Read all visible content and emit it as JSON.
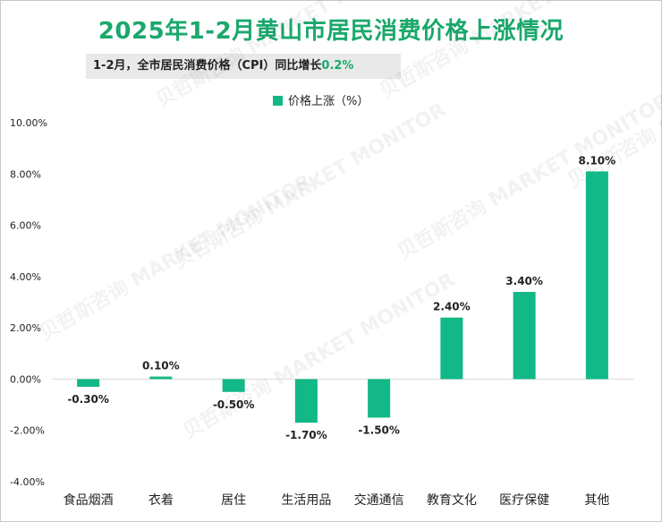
{
  "title": "2025年1-2月黄山市居民消费价格上涨情况",
  "subtitle_text": "1-2月，全市居民消费价格（CPI）同比增长",
  "subtitle_value": "0.2%",
  "watermark": "贝哲斯咨询 MARKET MONITOR",
  "colors": {
    "bar": "#12b886",
    "title": "#1aa86b",
    "axis": "#d9d9d9"
  },
  "chart_data": {
    "type": "bar",
    "title": "2025年1-2月黄山市居民消费价格上涨情况",
    "categories": [
      "食品烟酒",
      "衣着",
      "居住",
      "生活用品",
      "交通通信",
      "教育文化",
      "医疗保健",
      "其他"
    ],
    "series": [
      {
        "name": "价格上涨（%）",
        "values": [
          -0.3,
          0.1,
          -0.5,
          -1.7,
          -1.5,
          2.4,
          3.4,
          8.1
        ]
      }
    ],
    "data_labels": [
      "-0.30%",
      "0.10%",
      "-0.50%",
      "-1.70%",
      "-1.50%",
      "2.40%",
      "3.40%",
      "8.10%"
    ],
    "ylim": [
      -4,
      10
    ],
    "yticks": [
      "-4.00%",
      "-2.00%",
      "0.00%",
      "2.00%",
      "4.00%",
      "6.00%",
      "8.00%",
      "10.00%"
    ],
    "xlabel": "",
    "ylabel": "",
    "grid": false,
    "legend_position": "top"
  }
}
